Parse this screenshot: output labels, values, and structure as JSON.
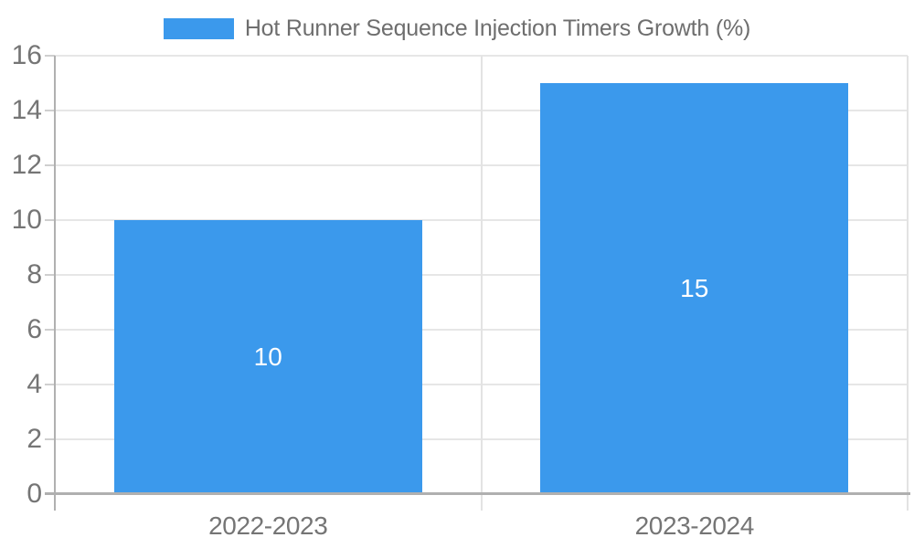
{
  "chart_data": {
    "type": "bar",
    "title": "Hot Runner Sequence Injection Timers Growth (%)",
    "legend": {
      "position": "top",
      "entries": [
        {
          "label": "Hot Runner Sequence Injection Timers Growth (%)",
          "color": "#3b99ec"
        }
      ]
    },
    "categories": [
      "2022-2023",
      "2023-2024"
    ],
    "series": [
      {
        "name": "Hot Runner Sequence Injection Timers Growth (%)",
        "values": [
          10,
          15
        ]
      }
    ],
    "data_labels": [
      "10",
      "15"
    ],
    "xlabel": "",
    "ylabel": "",
    "ylim": [
      0,
      16
    ],
    "yticks": [
      0,
      2,
      4,
      6,
      8,
      10,
      12,
      14,
      16
    ],
    "grid": true,
    "colors": {
      "bar": "#3b99ec",
      "gridline": "#e6e6e6",
      "boundary_line": "#e3e3e3",
      "axis_line": "#b0b0b0",
      "tick_mark": "#cfcfcf",
      "tick_text": "#757575",
      "legend_text": "#6e6e6e",
      "data_label_text": "#ffffff",
      "background": "#ffffff"
    }
  }
}
